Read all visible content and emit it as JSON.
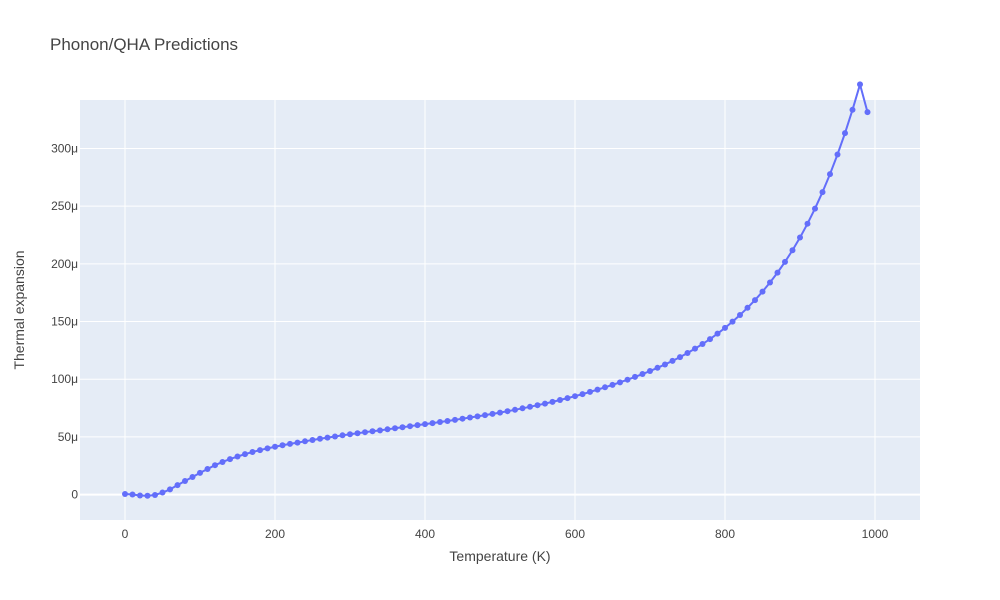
{
  "chart_data": {
    "type": "line",
    "title": "Phonon/QHA Predictions",
    "xlabel": "Temperature (K)",
    "ylabel": "Thermal expansion",
    "xlim": [
      -60,
      1060
    ],
    "ylim": [
      -2.2e-05,
      0.000342
    ],
    "grid": true,
    "x_ticks": [
      0,
      200,
      400,
      600,
      800,
      1000
    ],
    "x_tick_labels": [
      "0",
      "200",
      "400",
      "600",
      "800",
      "1000"
    ],
    "y_ticks": [
      0,
      5e-05,
      0.0001,
      0.00015,
      0.0002,
      0.00025,
      0.0003
    ],
    "y_tick_labels": [
      "0",
      "50μ",
      "100μ",
      "150μ",
      "200μ",
      "250μ",
      "300μ"
    ],
    "colors": {
      "line": "#636efa",
      "plot_bg": "#e5ecf6",
      "grid": "#ffffff"
    },
    "series": [
      {
        "x": [
          0,
          10,
          20,
          30,
          40,
          50,
          60,
          70,
          80,
          90,
          100,
          110,
          120,
          130,
          140,
          150,
          160,
          170,
          180,
          190,
          200,
          210,
          220,
          230,
          240,
          250,
          260,
          270,
          280,
          290,
          300,
          310,
          320,
          330,
          340,
          350,
          360,
          370,
          380,
          390,
          400,
          410,
          420,
          430,
          440,
          450,
          460,
          470,
          480,
          490,
          500,
          510,
          520,
          530,
          540,
          550,
          560,
          570,
          580,
          590,
          600,
          610,
          620,
          630,
          640,
          650,
          660,
          670,
          680,
          690,
          700,
          710,
          720,
          730,
          740,
          750,
          760,
          770,
          780,
          790,
          800,
          810,
          820,
          830,
          840,
          850,
          860,
          870,
          880,
          890,
          900,
          910,
          920,
          930,
          940,
          950,
          960,
          970,
          980,
          990
        ],
        "y": [
          5e-07,
          1e-07,
          -8e-07,
          -1e-06,
          -3e-07,
          1.8e-06,
          4.5e-06,
          8.2e-06,
          1.18e-05,
          1.53e-05,
          1.88e-05,
          2.22e-05,
          2.55e-05,
          2.83e-05,
          3.08e-05,
          3.3e-05,
          3.51e-05,
          3.69e-05,
          3.86e-05,
          4.01e-05,
          4.15e-05,
          4.28e-05,
          4.4e-05,
          4.51e-05,
          4.62e-05,
          4.73e-05,
          4.84e-05,
          4.94e-05,
          5.04e-05,
          5.14e-05,
          5.23e-05,
          5.32e-05,
          5.41e-05,
          5.49e-05,
          5.57e-05,
          5.66e-05,
          5.75e-05,
          5.84e-05,
          5.93e-05,
          6.02e-05,
          6.11e-05,
          6.2e-05,
          6.29e-05,
          6.38e-05,
          6.48e-05,
          6.58e-05,
          6.68e-05,
          6.78e-05,
          6.89e-05,
          7e-05,
          7.11e-05,
          7.23e-05,
          7.35e-05,
          7.48e-05,
          7.61e-05,
          7.75e-05,
          7.89e-05,
          8.04e-05,
          8.2e-05,
          8.36e-05,
          8.53e-05,
          8.71e-05,
          8.9e-05,
          9.1e-05,
          9.3e-05,
          9.51e-05,
          9.73e-05,
          9.96e-05,
          0.000102,
          0.0001045,
          0.0001071,
          0.0001099,
          0.0001128,
          0.0001159,
          0.0001192,
          0.0001227,
          0.0001265,
          0.0001305,
          0.0001348,
          0.0001395,
          0.0001445,
          0.0001499,
          0.0001557,
          0.0001619,
          0.0001686,
          0.0001759,
          0.0001838,
          0.0001924,
          0.0002017,
          0.0002118,
          0.0002228,
          0.0002348,
          0.0002479,
          0.0002622,
          0.0002778,
          0.0002948,
          0.0003133,
          0.0003335,
          0.0003555,
          0.0003315
        ]
      }
    ]
  }
}
